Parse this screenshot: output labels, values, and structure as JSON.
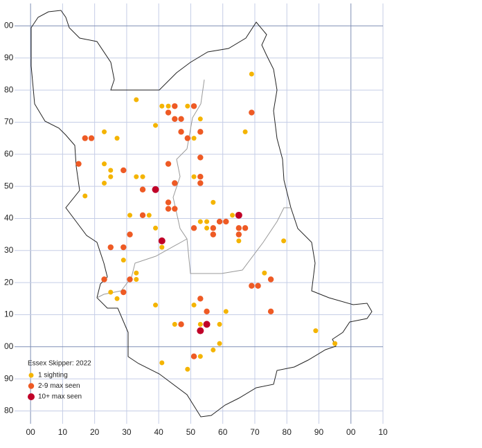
{
  "chart_data": {
    "type": "scatter",
    "legend_title": "Essex Skipper:  2022",
    "legend": "lower left",
    "grid": true,
    "xlim": [
      -5,
      110
    ],
    "ylim": [
      -24,
      107
    ],
    "xticks": [
      {
        "value": 0,
        "label": "00"
      },
      10,
      20,
      30,
      40,
      50,
      60,
      70,
      80,
      90,
      {
        "value": 100,
        "label": "00"
      },
      {
        "value": 110,
        "label": "10"
      }
    ],
    "yticks": [
      {
        "value": -20,
        "label": "80"
      },
      {
        "value": -10,
        "label": "90"
      },
      {
        "value": 0,
        "label": "00"
      },
      10,
      20,
      30,
      40,
      50,
      60,
      70,
      80,
      90,
      {
        "value": 100,
        "label": "00"
      }
    ],
    "series": [
      {
        "name": "1 sighting",
        "color": "#f4b400",
        "x": [
          69,
          33,
          41,
          43,
          49,
          39,
          53,
          23,
          27,
          67,
          51,
          23,
          25,
          25,
          33,
          35,
          23,
          51,
          17,
          57,
          31,
          37,
          39,
          53,
          55,
          63,
          55,
          65,
          41,
          79,
          29,
          33,
          33,
          73,
          25,
          27,
          39,
          51,
          61,
          45,
          53,
          59,
          89,
          95,
          59,
          57,
          53,
          41,
          49
        ],
        "values": [
          85,
          77,
          75,
          75,
          75,
          69,
          71,
          67,
          65,
          67,
          65,
          57,
          55,
          53,
          53,
          53,
          51,
          53,
          47,
          45,
          41,
          41,
          37,
          39,
          39,
          41,
          37,
          33,
          31,
          33,
          27,
          23,
          21,
          23,
          17,
          15,
          13,
          13,
          11,
          7,
          7,
          7,
          5,
          1,
          1,
          -1,
          -3,
          -5,
          -7
        ]
      },
      {
        "name": "2-9 max seen",
        "color": "#ee5a24",
        "x": [
          51,
          45,
          43,
          69,
          45,
          47,
          47,
          53,
          17,
          19,
          49,
          53,
          15,
          43,
          29,
          53,
          53,
          45,
          35,
          43,
          43,
          45,
          35,
          59,
          61,
          31,
          51,
          57,
          65,
          67,
          57,
          65,
          25,
          29,
          23,
          31,
          69,
          71,
          75,
          29,
          53,
          55,
          75,
          47,
          51
        ],
        "values": [
          75,
          75,
          73,
          73,
          71,
          71,
          67,
          67,
          65,
          65,
          65,
          59,
          57,
          57,
          55,
          53,
          51,
          51,
          49,
          45,
          43,
          43,
          41,
          39,
          39,
          35,
          37,
          37,
          37,
          37,
          35,
          35,
          31,
          31,
          21,
          21,
          19,
          19,
          21,
          17,
          15,
          11,
          11,
          7,
          -3
        ]
      },
      {
        "name": "10+ max seen",
        "color": "#c00028",
        "x": [
          39,
          41,
          65,
          55,
          53
        ],
        "values": [
          49,
          33,
          41,
          7,
          5
        ]
      }
    ]
  }
}
